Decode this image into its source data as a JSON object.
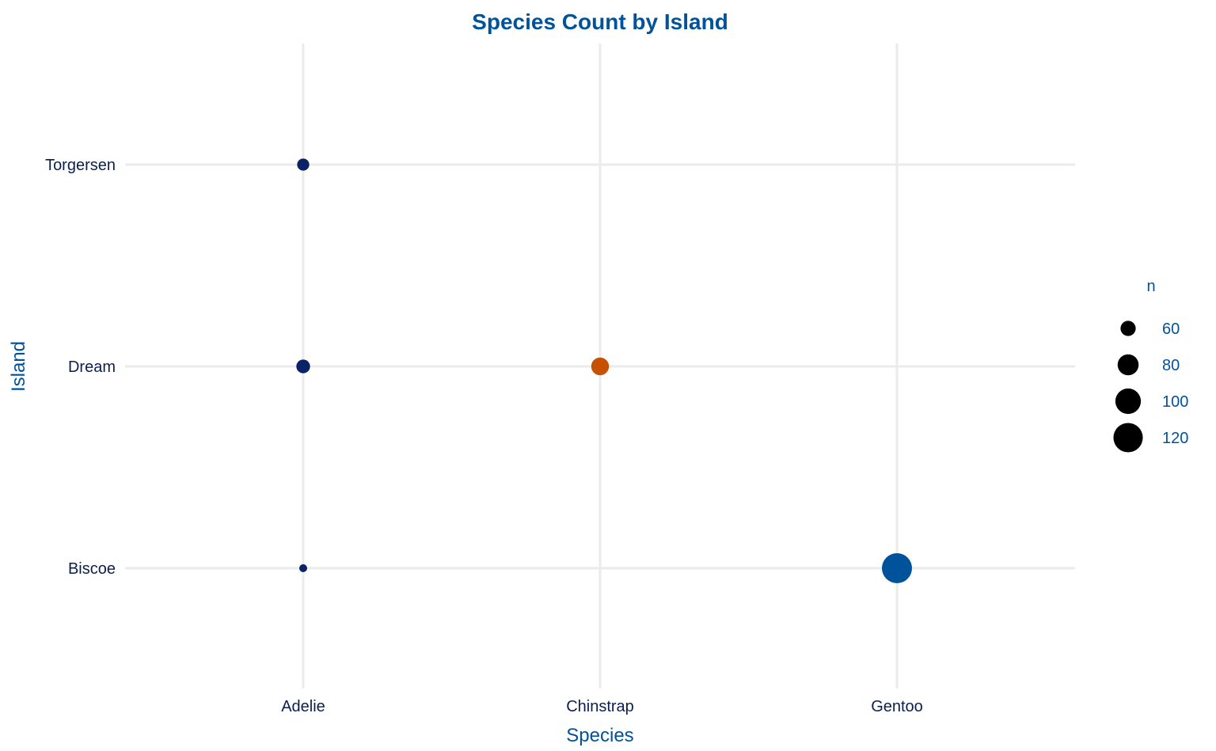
{
  "chart_data": {
    "type": "scatter",
    "title": "Species Count by Island",
    "xlabel": "Species",
    "ylabel": "Island",
    "x_categories": [
      "Adelie",
      "Chinstrap",
      "Gentoo"
    ],
    "y_categories": [
      "Biscoe",
      "Dream",
      "Torgersen"
    ],
    "grid": true,
    "points": [
      {
        "x": "Adelie",
        "y": "Biscoe",
        "n": 44,
        "color": "#0a2366"
      },
      {
        "x": "Adelie",
        "y": "Dream",
        "n": 56,
        "color": "#0a2366"
      },
      {
        "x": "Adelie",
        "y": "Torgersen",
        "n": 52,
        "color": "#0a2366"
      },
      {
        "x": "Chinstrap",
        "y": "Dream",
        "n": 68,
        "color": "#c65100"
      },
      {
        "x": "Gentoo",
        "y": "Biscoe",
        "n": 124,
        "color": "#00529b"
      }
    ],
    "legend": {
      "title": "n",
      "position": "right",
      "entries": [
        {
          "label": "60",
          "value": 60
        },
        {
          "label": "80",
          "value": 80
        },
        {
          "label": "100",
          "value": 100
        },
        {
          "label": "120",
          "value": 120
        }
      ]
    }
  }
}
